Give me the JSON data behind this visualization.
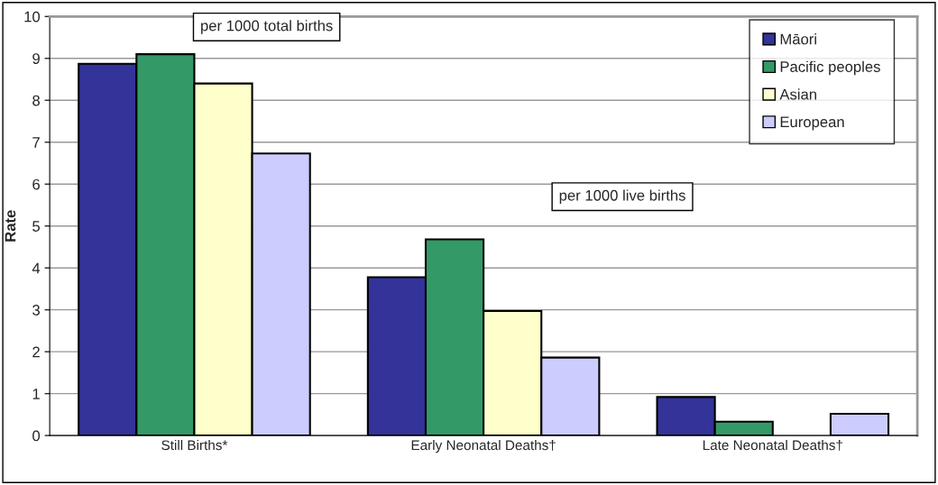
{
  "chart_data": {
    "type": "bar",
    "ylabel": "Rate",
    "categories": [
      "Still Births*",
      "Early Neonatal Deaths†",
      "Late Neonatal Deaths†"
    ],
    "series": [
      {
        "name": "Māori",
        "color": "#333399",
        "values": [
          8.87,
          3.78,
          0.92
        ]
      },
      {
        "name": "Pacific peoples",
        "color": "#339966",
        "values": [
          9.1,
          4.68,
          0.33
        ]
      },
      {
        "name": "Asian",
        "color": "#ffffcc",
        "values": [
          8.4,
          2.97,
          null
        ]
      },
      {
        "name": "European",
        "color": "#ccccff",
        "values": [
          6.73,
          1.86,
          0.52
        ]
      }
    ],
    "ylim": [
      0,
      10
    ],
    "yticks": [
      0,
      1,
      2,
      3,
      4,
      5,
      6,
      7,
      8,
      9,
      10
    ],
    "grid": "y",
    "legend": "top right",
    "annotations": [
      "per 1000 total births",
      "per 1000 live births"
    ]
  }
}
